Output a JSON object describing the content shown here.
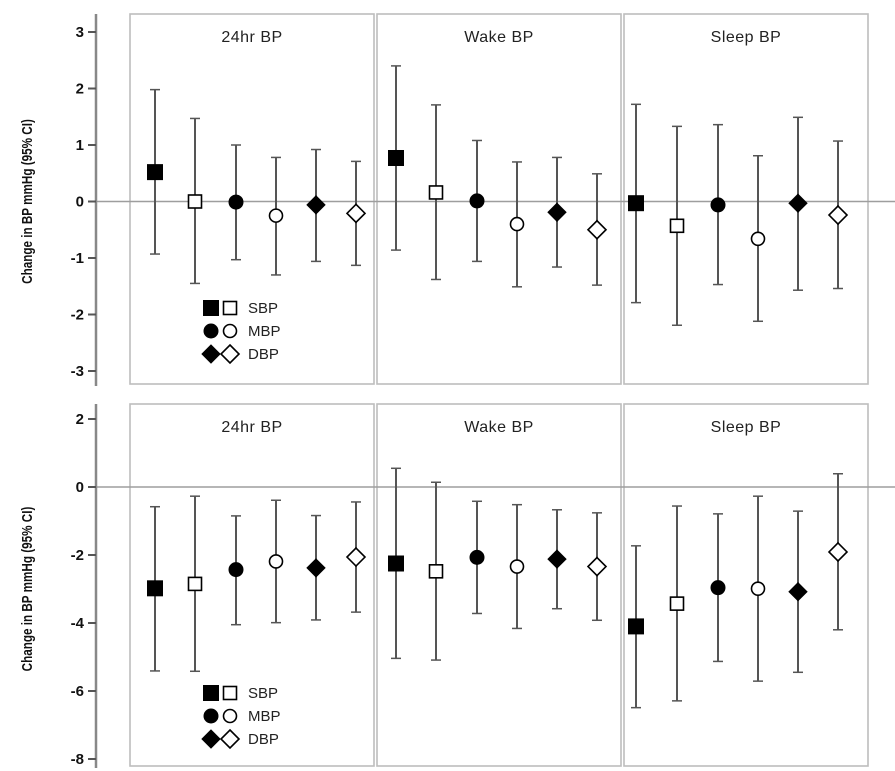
{
  "chart_data": [
    {
      "type": "scatter",
      "ylabel": "Change in BP mmHg (95% CI)",
      "ylim": [
        -3,
        3
      ],
      "yticks": [
        3,
        2,
        1,
        0,
        -1,
        -2,
        -3
      ],
      "panels": [
        {
          "title": "24hr BP",
          "points": [
            {
              "series": "SBP",
              "filled": true,
              "y": 0.52,
              "lo": -0.93,
              "hi": 1.98
            },
            {
              "series": "SBP",
              "filled": false,
              "y": 0.0,
              "lo": -1.45,
              "hi": 1.47
            },
            {
              "series": "MBP",
              "filled": true,
              "y": -0.01,
              "lo": -1.03,
              "hi": 1.0
            },
            {
              "series": "MBP",
              "filled": false,
              "y": -0.25,
              "lo": -1.3,
              "hi": 0.78
            },
            {
              "series": "DBP",
              "filled": true,
              "y": -0.06,
              "lo": -1.06,
              "hi": 0.92
            },
            {
              "series": "DBP",
              "filled": false,
              "y": -0.21,
              "lo": -1.13,
              "hi": 0.71
            }
          ]
        },
        {
          "title": "Wake BP",
          "points": [
            {
              "series": "SBP",
              "filled": true,
              "y": 0.77,
              "lo": -0.86,
              "hi": 2.4
            },
            {
              "series": "SBP",
              "filled": false,
              "y": 0.16,
              "lo": -1.38,
              "hi": 1.71
            },
            {
              "series": "MBP",
              "filled": true,
              "y": 0.01,
              "lo": -1.06,
              "hi": 1.08
            },
            {
              "series": "MBP",
              "filled": false,
              "y": -0.4,
              "lo": -1.51,
              "hi": 0.7
            },
            {
              "series": "DBP",
              "filled": true,
              "y": -0.19,
              "lo": -1.16,
              "hi": 0.78
            },
            {
              "series": "DBP",
              "filled": false,
              "y": -0.5,
              "lo": -1.48,
              "hi": 0.49
            }
          ]
        },
        {
          "title": "Sleep BP",
          "points": [
            {
              "series": "SBP",
              "filled": true,
              "y": -0.03,
              "lo": -1.79,
              "hi": 1.72
            },
            {
              "series": "SBP",
              "filled": false,
              "y": -0.43,
              "lo": -2.19,
              "hi": 1.33
            },
            {
              "series": "MBP",
              "filled": true,
              "y": -0.06,
              "lo": -1.47,
              "hi": 1.36
            },
            {
              "series": "MBP",
              "filled": false,
              "y": -0.66,
              "lo": -2.12,
              "hi": 0.81
            },
            {
              "series": "DBP",
              "filled": true,
              "y": -0.03,
              "lo": -1.57,
              "hi": 1.49
            },
            {
              "series": "DBP",
              "filled": false,
              "y": -0.24,
              "lo": -1.54,
              "hi": 1.07
            }
          ]
        }
      ],
      "legend": {
        "placement": "lower-left of first panel",
        "entries": [
          "SBP",
          "MBP",
          "DBP"
        ]
      },
      "reference_line": 0
    },
    {
      "type": "scatter",
      "ylabel": "Change in BP mmHg (95% CI)",
      "ylim": [
        -8,
        2
      ],
      "yticks": [
        2,
        0,
        -2,
        -4,
        -6,
        -8
      ],
      "panels": [
        {
          "title": "24hr BP",
          "points": [
            {
              "series": "SBP",
              "filled": true,
              "y": -2.98,
              "lo": -5.41,
              "hi": -0.58
            },
            {
              "series": "SBP",
              "filled": false,
              "y": -2.85,
              "lo": -5.42,
              "hi": -0.27
            },
            {
              "series": "MBP",
              "filled": true,
              "y": -2.43,
              "lo": -4.05,
              "hi": -0.85
            },
            {
              "series": "MBP",
              "filled": false,
              "y": -2.19,
              "lo": -3.99,
              "hi": -0.39
            },
            {
              "series": "DBP",
              "filled": true,
              "y": -2.38,
              "lo": -3.91,
              "hi": -0.84
            },
            {
              "series": "DBP",
              "filled": false,
              "y": -2.06,
              "lo": -3.68,
              "hi": -0.44
            }
          ]
        },
        {
          "title": "Wake BP",
          "points": [
            {
              "series": "SBP",
              "filled": true,
              "y": -2.25,
              "lo": -5.04,
              "hi": 0.55
            },
            {
              "series": "SBP",
              "filled": false,
              "y": -2.48,
              "lo": -5.09,
              "hi": 0.14
            },
            {
              "series": "MBP",
              "filled": true,
              "y": -2.07,
              "lo": -3.72,
              "hi": -0.42
            },
            {
              "series": "MBP",
              "filled": false,
              "y": -2.34,
              "lo": -4.16,
              "hi": -0.52
            },
            {
              "series": "DBP",
              "filled": true,
              "y": -2.12,
              "lo": -3.58,
              "hi": -0.67
            },
            {
              "series": "DBP",
              "filled": false,
              "y": -2.34,
              "lo": -3.92,
              "hi": -0.76
            }
          ]
        },
        {
          "title": "Sleep BP",
          "points": [
            {
              "series": "SBP",
              "filled": true,
              "y": -4.1,
              "lo": -6.49,
              "hi": -1.73
            },
            {
              "series": "SBP",
              "filled": false,
              "y": -3.43,
              "lo": -6.29,
              "hi": -0.56
            },
            {
              "series": "MBP",
              "filled": true,
              "y": -2.96,
              "lo": -5.13,
              "hi": -0.79
            },
            {
              "series": "MBP",
              "filled": false,
              "y": -2.99,
              "lo": -5.71,
              "hi": -0.27
            },
            {
              "series": "DBP",
              "filled": true,
              "y": -3.08,
              "lo": -5.45,
              "hi": -0.71
            },
            {
              "series": "DBP",
              "filled": false,
              "y": -1.91,
              "lo": -4.2,
              "hi": 0.39
            }
          ]
        }
      ],
      "legend": {
        "placement": "lower-left of first panel",
        "entries": [
          "SBP",
          "MBP",
          "DBP"
        ]
      },
      "reference_line": 0
    }
  ]
}
